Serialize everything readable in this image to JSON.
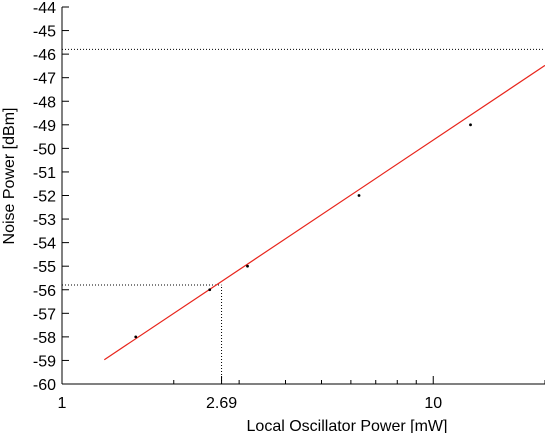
{
  "chart_data": {
    "type": "line",
    "title": "",
    "xlabel": "Local Oscillator Power [mW]",
    "ylabel": "Noise Power [dBm]",
    "xscale": "log",
    "xlim": [
      1,
      20
    ],
    "ylim": [
      -60,
      -44
    ],
    "x_ticks": [
      {
        "value": 1,
        "label": "1"
      },
      {
        "value": 2.69,
        "label": "2.69"
      },
      {
        "value": 10,
        "label": "10"
      }
    ],
    "y_ticks": [
      {
        "value": -44,
        "label": "-44"
      },
      {
        "value": -45,
        "label": "-45"
      },
      {
        "value": -46,
        "label": "-46"
      },
      {
        "value": -47,
        "label": "-47"
      },
      {
        "value": -48,
        "label": "-48"
      },
      {
        "value": -49,
        "label": "-49"
      },
      {
        "value": -50,
        "label": "-50"
      },
      {
        "value": -51,
        "label": "-51"
      },
      {
        "value": -52,
        "label": "-52"
      },
      {
        "value": -53,
        "label": "-53"
      },
      {
        "value": -54,
        "label": "-54"
      },
      {
        "value": -55,
        "label": "-55"
      },
      {
        "value": -56,
        "label": "-56"
      },
      {
        "value": -57,
        "label": "-57"
      },
      {
        "value": -58,
        "label": "-58"
      },
      {
        "value": -59,
        "label": "-59"
      },
      {
        "value": -60,
        "label": "-60"
      }
    ],
    "grid": false,
    "legend": "none",
    "series": [
      {
        "style": "points",
        "color": "#000000",
        "points": [
          {
            "x": 1.58,
            "y": -58
          },
          {
            "x": 2.5,
            "y": -56
          },
          {
            "x": 3.16,
            "y": -55
          },
          {
            "x": 6.31,
            "y": -52
          },
          {
            "x": 12.6,
            "y": -49
          }
        ]
      },
      {
        "style": "line",
        "color": "#e8251c",
        "points": [
          {
            "x": 1.3,
            "y": -58.97
          },
          {
            "x": 20,
            "y": -46.48
          }
        ]
      }
    ],
    "reference_lines": [
      {
        "orientation": "horizontal",
        "y": -45.8,
        "x_from": 1,
        "x_to": 20
      },
      {
        "orientation": "horizontal",
        "y": -55.8,
        "x_from": 1,
        "x_to": 2.69
      },
      {
        "orientation": "vertical",
        "x": 2.69,
        "y_from": -60,
        "y_to": -55.8
      }
    ]
  }
}
